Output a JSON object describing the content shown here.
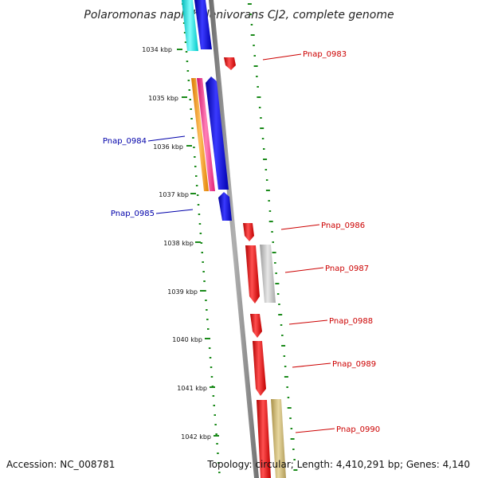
{
  "title": "Polaromonas naphthalenivorans CJ2, complete genome",
  "accession": "Accession: NC_008781",
  "summary": "Topology: circular; Length: 4,410,291 bp; Genes: 4,140",
  "kbp_labels": [
    "1034 kbp",
    "1035 kbp",
    "1036 kbp",
    "1037 kbp",
    "1038 kbp",
    "1039 kbp",
    "1040 kbp",
    "1041 kbp",
    "1042 kbp"
  ],
  "gene_labels": [
    {
      "text": "Pnap_0983",
      "strand": "forward",
      "color": "#cc0000"
    },
    {
      "text": "Pnap_0984",
      "strand": "reverse",
      "color": "#0000aa"
    },
    {
      "text": "Pnap_0985",
      "strand": "reverse",
      "color": "#0000aa"
    },
    {
      "text": "Pnap_0986",
      "strand": "forward",
      "color": "#cc0000"
    },
    {
      "text": "Pnap_0987",
      "strand": "forward",
      "color": "#cc0000"
    },
    {
      "text": "Pnap_0988",
      "strand": "forward",
      "color": "#cc0000"
    },
    {
      "text": "Pnap_0989",
      "strand": "forward",
      "color": "#cc0000"
    },
    {
      "text": "Pnap_0990",
      "strand": "forward",
      "color": "#cc0000"
    }
  ],
  "colors": {
    "backbone": "#8c8c8c",
    "dots": "#1a8a1a",
    "forward": "#ff0000",
    "reverse": "#0000ff",
    "cyan": "#00e5e5",
    "orange": "#ff9900",
    "magenta": "#ff3399",
    "gray_gene": "#bdbdbd",
    "olive_gene": "#c8b26e"
  }
}
